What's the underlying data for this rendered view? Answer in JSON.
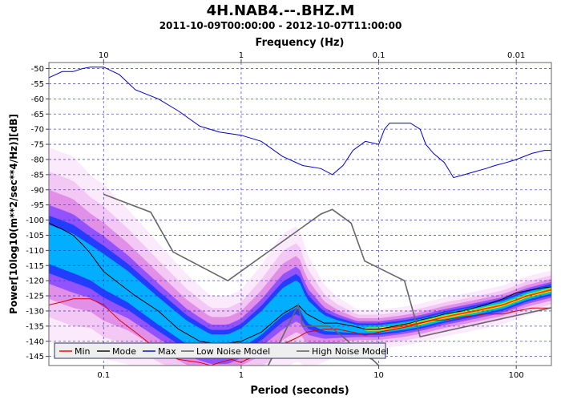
{
  "chart_data": {
    "type": "line",
    "title": "4H.NAB4.--.BHZ.M",
    "subtitle": "2011-10-09T00:00:00 - 2012-10-07T11:00:00",
    "xlabel": "Period (seconds)",
    "x2label": "Frequency (Hz)",
    "ylabel": "Power[10log10(m**2/sec**4/Hz)][dB]",
    "xscale": "log",
    "xlim": [
      0.04,
      180
    ],
    "ylim": [
      -148,
      -48
    ],
    "grid": true,
    "x_ticks": [
      {
        "value": 0.1,
        "label": "0.1"
      },
      {
        "value": 1,
        "label": "1"
      },
      {
        "value": 10,
        "label": "10"
      },
      {
        "value": 100,
        "label": "100"
      }
    ],
    "x2_ticks": [
      {
        "value": 0.1,
        "label": "10"
      },
      {
        "value": 1,
        "label": "1"
      },
      {
        "value": 10,
        "label": "0.1"
      },
      {
        "value": 100,
        "label": "0.01"
      }
    ],
    "y_ticks": [
      -50,
      -55,
      -60,
      -65,
      -70,
      -75,
      -80,
      -85,
      -90,
      -95,
      -100,
      -105,
      -110,
      -115,
      -120,
      -125,
      -130,
      -135,
      -140,
      -145
    ],
    "legend": {
      "position": "bottom-left",
      "entries": [
        {
          "label": "Min",
          "color": "#dd0000"
        },
        {
          "label": "Mode",
          "color": "#000000"
        },
        {
          "label": "Max",
          "color": "#0000cc"
        },
        {
          "label": "Low Noise Model",
          "color": "#555555"
        },
        {
          "label": "High Noise Model",
          "color": "#555555"
        }
      ]
    },
    "series": [
      {
        "name": "Max",
        "color": "#0000cc",
        "x": [
          0.04,
          0.05,
          0.06,
          0.07,
          0.08,
          0.1,
          0.13,
          0.17,
          0.25,
          0.35,
          0.5,
          0.7,
          1.0,
          1.4,
          2.0,
          2.8,
          3.8,
          4.6,
          5.5,
          6.5,
          8.0,
          10,
          11,
          12,
          14,
          17,
          20,
          22,
          25,
          30,
          35,
          42,
          50,
          60,
          70,
          85,
          100,
          130,
          160,
          180
        ],
        "y": [
          -53,
          -51,
          -51,
          -50,
          -49.5,
          -49.5,
          -52,
          -57,
          -60,
          -64,
          -69,
          -71,
          -72,
          -74,
          -79,
          -82,
          -83,
          -85,
          -82,
          -77,
          -74,
          -75,
          -70,
          -68,
          -68,
          -68,
          -70,
          -75,
          -78,
          -81,
          -86,
          -85,
          -84,
          -83,
          -82,
          -81,
          -80,
          -78,
          -77,
          -77
        ]
      },
      {
        "name": "Mode",
        "color": "#000000",
        "x": [
          0.04,
          0.05,
          0.06,
          0.07,
          0.08,
          0.1,
          0.13,
          0.17,
          0.25,
          0.35,
          0.5,
          0.7,
          1.0,
          1.4,
          2.0,
          2.6,
          3.0,
          4.0,
          5.0,
          6.5,
          8.0,
          10,
          13,
          17,
          20,
          25,
          30,
          40,
          60,
          80,
          100,
          130,
          180
        ],
        "y": [
          -101,
          -103,
          -105,
          -108,
          -111,
          -117,
          -121,
          -125,
          -130,
          -136,
          -140,
          -141,
          -140,
          -137,
          -131,
          -128,
          -131,
          -134,
          -134,
          -135,
          -136,
          -136,
          -135,
          -134,
          -133,
          -132,
          -131,
          -130,
          -128,
          -126,
          -124,
          -123,
          -122
        ]
      },
      {
        "name": "Min",
        "color": "#dd0000",
        "x": [
          0.04,
          0.05,
          0.06,
          0.07,
          0.08,
          0.1,
          0.13,
          0.17,
          0.25,
          0.35,
          0.5,
          0.6,
          0.7,
          0.85,
          1.0,
          1.1,
          1.3,
          1.6,
          2.0,
          2.5,
          3.0,
          4.0,
          5.0,
          6.5,
          8.0,
          10,
          13,
          17,
          20,
          25,
          30,
          40,
          60,
          80,
          100,
          130,
          180
        ],
        "y": [
          -128,
          -127,
          -126,
          -126,
          -126,
          -128,
          -133,
          -137,
          -143,
          -146,
          -147,
          -148,
          -147,
          -146,
          -147,
          -146,
          -145,
          -143,
          -141,
          -139,
          -137,
          -136,
          -136,
          -137,
          -138,
          -137,
          -136,
          -135,
          -134,
          -133,
          -133,
          -132,
          -131,
          -131,
          -130,
          -129,
          -129
        ]
      },
      {
        "name": "High Noise Model",
        "color": "#666666",
        "x": [
          0.1,
          0.22,
          0.32,
          0.8,
          3.8,
          4.6,
          6.3,
          7.9,
          15.4,
          20,
          354.8
        ],
        "y": [
          -91.5,
          -97.4,
          -110.5,
          -120,
          -98,
          -96.5,
          -101,
          -113.5,
          -120,
          -138.5,
          -126
        ]
      },
      {
        "name": "Low Noise Model",
        "color": "#666666",
        "x": [
          1.0,
          2.6,
          2.8,
          4.4,
          6.0,
          7.0,
          8.0,
          9.0,
          10
        ],
        "y": [
          -166,
          -128,
          -135,
          -135,
          -140,
          -144,
          -145,
          -146,
          -148
        ]
      }
    ],
    "psd_density_ridges": [
      {
        "x": [
          0.04,
          0.06,
          0.08,
          0.1,
          0.15,
          0.25,
          0.4,
          0.6,
          0.8,
          1.0,
          1.4,
          2.0,
          2.6,
          3.0,
          4.0,
          5.0,
          7.0,
          10,
          15,
          20,
          30,
          50,
          80,
          120,
          180
        ],
        "center": [
          -108,
          -111,
          -114,
          -117,
          -122,
          -130,
          -137,
          -141,
          -141,
          -139,
          -134,
          -127,
          -124,
          -130,
          -134,
          -135,
          -136,
          -136,
          -135,
          -134,
          -132,
          -130,
          -128,
          -125,
          -123
        ],
        "spread": [
          10,
          10,
          9,
          9,
          8,
          7,
          6,
          5,
          5,
          5,
          6,
          7,
          7,
          6,
          4,
          3,
          2,
          2,
          2,
          2,
          2,
          2,
          2,
          2,
          2
        ]
      }
    ]
  }
}
